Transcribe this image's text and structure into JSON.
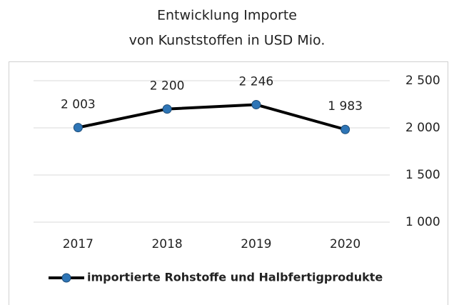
{
  "chart_data": {
    "type": "line",
    "title": [
      "Entwicklung Importe",
      "von Kunststoffen in USD Mio."
    ],
    "categories": [
      "2017",
      "2018",
      "2019",
      "2020"
    ],
    "series": [
      {
        "name": "importierte Rohstoffe und Halbfertigprodukte",
        "color": "#000000",
        "marker_color": "#2e75b6",
        "values": [
          2003,
          2200,
          2246,
          1983
        ],
        "value_labels": [
          "2 003",
          "2 200",
          "2 246",
          "1 983"
        ]
      }
    ],
    "ylim": [
      1000,
      2500
    ],
    "yticks": [
      {
        "value": 1000,
        "label": "1 000"
      },
      {
        "value": 1500,
        "label": "1 500"
      },
      {
        "value": 2000,
        "label": "2 000"
      },
      {
        "value": 2500,
        "label": "2 500"
      }
    ],
    "y_axis_side": "right",
    "grid": true,
    "legend": "bottom"
  }
}
